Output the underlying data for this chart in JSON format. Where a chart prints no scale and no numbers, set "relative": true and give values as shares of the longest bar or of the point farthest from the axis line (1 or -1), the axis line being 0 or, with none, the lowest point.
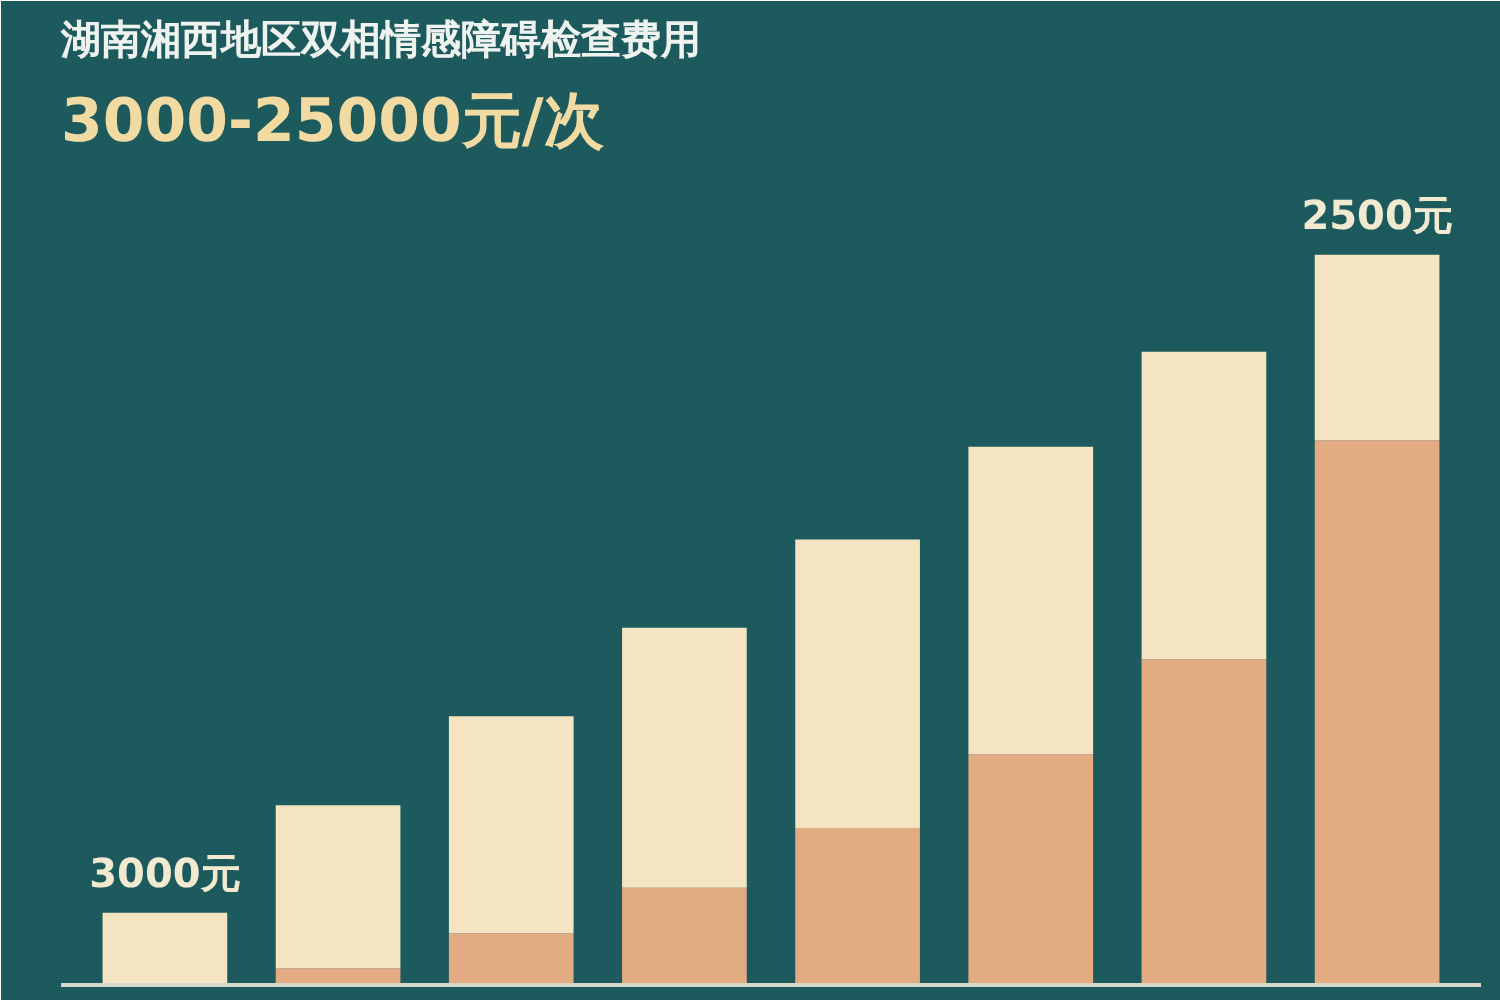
{
  "chart_data": {
    "type": "bar",
    "title": "湖南湘西地区双相情感障碍检查费用",
    "subtitle": "3000-25000元/次",
    "relative": true,
    "stacked": true,
    "categories": [
      null,
      null,
      null,
      null,
      null,
      null,
      null,
      null
    ],
    "series": [
      {
        "color": "#e3ab82",
        "values": [
          null,
          0.023,
          0.071,
          0.133,
          0.215,
          0.316,
          0.446,
          0.746
        ]
      },
      {
        "color": "#f4e4c2",
        "values": [
          0.099,
          0.223,
          0.297,
          0.356,
          0.395,
          0.421,
          0.421,
          0.254
        ]
      }
    ],
    "value_labels": [
      "3000元",
      null,
      null,
      null,
      null,
      null,
      null,
      "2500元"
    ]
  }
}
